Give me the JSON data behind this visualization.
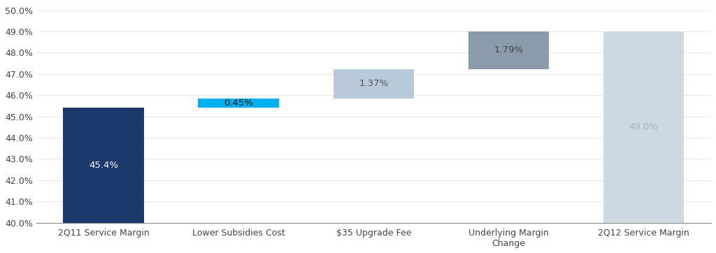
{
  "categories": [
    "2Q11 Service Margin",
    "Lower Subsidies Cost",
    "$35 Upgrade Fee",
    "Underlying Margin\nChange",
    "2Q12 Service Margin"
  ],
  "bar_bottoms": [
    40.0,
    45.4,
    45.85,
    47.22,
    40.0
  ],
  "bar_heights": [
    5.4,
    0.45,
    1.37,
    1.79,
    9.0
  ],
  "bar_colors": [
    "#1b3a6b",
    "#00b0f0",
    "#b8c9d9",
    "#8c9bab",
    "#ccd9e3"
  ],
  "bar_labels": [
    "45.4%",
    "0.45%",
    "1.37%",
    "1.79%",
    "49.0%"
  ],
  "label_colors": [
    "#ffffff",
    "#111111",
    "#555555",
    "#444444",
    "#a0b4c4"
  ],
  "ylim": [
    40.0,
    50.25
  ],
  "yticks": [
    40.0,
    41.0,
    42.0,
    43.0,
    44.0,
    45.0,
    46.0,
    47.0,
    48.0,
    49.0,
    50.0
  ],
  "background_color": "#ffffff",
  "bar_width": 0.6,
  "figsize": [
    10.24,
    3.62
  ],
  "dpi": 100
}
